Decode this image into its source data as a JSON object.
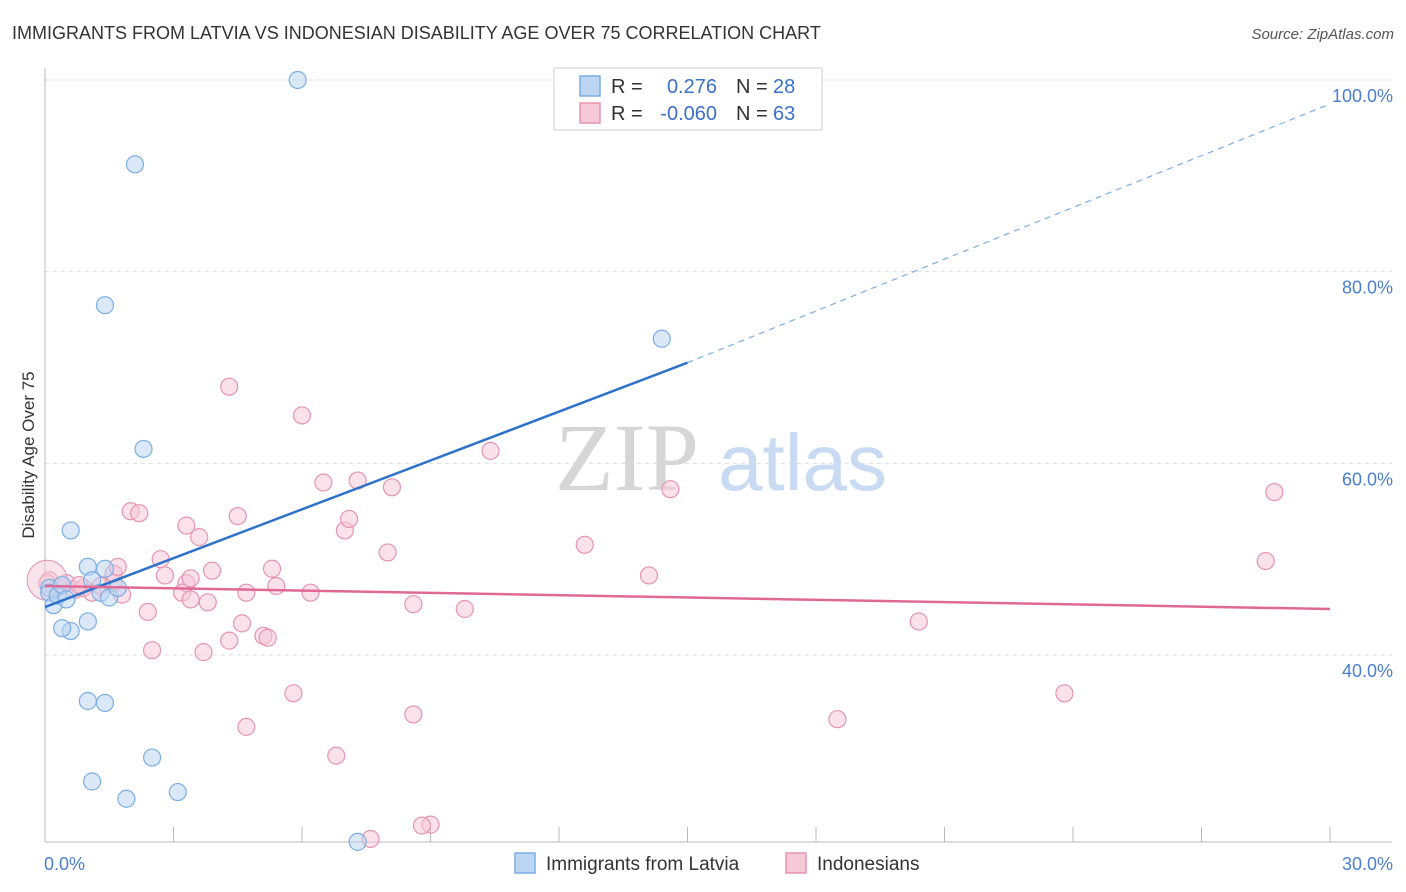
{
  "chart_data": {
    "type": "scatter",
    "title": "IMMIGRANTS FROM LATVIA VS INDONESIAN DISABILITY AGE OVER 75 CORRELATION CHART",
    "source": "Source: ZipAtlas.com",
    "ylabel": "Disability Age Over 75",
    "xlabel": "",
    "xlim": [
      0,
      30
    ],
    "ylim": [
      20,
      102
    ],
    "x_tick_labels": [
      "0.0%",
      "30.0%"
    ],
    "y_ticks": [
      40,
      60,
      80,
      100
    ],
    "y_tick_labels": [
      "40.0%",
      "60.0%",
      "80.0%",
      "100.0%"
    ],
    "watermark": {
      "zip": "ZIP",
      "atlas": "atlas"
    },
    "legend": {
      "r_label": "R =",
      "n_label": "N =",
      "entries": [
        {
          "r": "0.276",
          "n": "28"
        },
        {
          "r": "-0.060",
          "n": "63"
        }
      ]
    },
    "series": [
      {
        "name": "Immigrants from Latvia",
        "color": "#7aaee6",
        "fill": "#bcd5f3",
        "trend": {
          "x0": 0.0,
          "y0": 45.0,
          "x1": 15.0,
          "y1": 70.5,
          "dash_to_x": 30.0,
          "dash_to_y": 97.5,
          "color": "#2f72c9"
        },
        "points": [
          [
            0.1,
            47.0
          ],
          [
            0.1,
            46.5
          ],
          [
            0.2,
            45.2
          ],
          [
            0.3,
            46.2
          ],
          [
            0.4,
            47.3
          ],
          [
            0.5,
            45.8
          ],
          [
            0.6,
            53.0
          ],
          [
            0.6,
            42.5
          ],
          [
            0.4,
            42.8
          ],
          [
            1.0,
            49.2
          ],
          [
            1.1,
            47.8
          ],
          [
            1.0,
            43.5
          ],
          [
            1.3,
            46.5
          ],
          [
            1.4,
            49.0
          ],
          [
            1.5,
            46.0
          ],
          [
            1.7,
            47.0
          ],
          [
            1.4,
            76.5
          ],
          [
            2.1,
            91.2
          ],
          [
            2.3,
            61.5
          ],
          [
            1.0,
            35.2
          ],
          [
            1.4,
            35.0
          ],
          [
            2.5,
            29.3
          ],
          [
            1.1,
            26.8
          ],
          [
            1.9,
            25.0
          ],
          [
            3.1,
            25.7
          ],
          [
            5.9,
            100.0
          ],
          [
            14.4,
            73.0
          ],
          [
            7.3,
            20.5
          ]
        ]
      },
      {
        "name": "Indonesians",
        "color": "#e694b0",
        "fill": "#f6c9d8",
        "trend": {
          "x0": 0.0,
          "y0": 47.2,
          "x1": 30.0,
          "y1": 44.8,
          "color": "#e06994"
        },
        "points": [
          [
            0.1,
            47.8
          ],
          [
            0.3,
            47.0
          ],
          [
            0.5,
            47.5
          ],
          [
            0.7,
            46.8
          ],
          [
            0.9,
            47.0
          ],
          [
            1.1,
            46.5
          ],
          [
            1.3,
            47.2
          ],
          [
            1.6,
            47.5
          ],
          [
            1.8,
            46.3
          ],
          [
            1.6,
            48.5
          ],
          [
            1.7,
            49.2
          ],
          [
            2.0,
            55.0
          ],
          [
            2.2,
            54.8
          ],
          [
            2.7,
            50.0
          ],
          [
            2.8,
            48.3
          ],
          [
            3.3,
            53.5
          ],
          [
            3.6,
            52.3
          ],
          [
            3.3,
            47.5
          ],
          [
            3.2,
            46.5
          ],
          [
            3.4,
            48.0
          ],
          [
            3.4,
            45.8
          ],
          [
            3.9,
            48.8
          ],
          [
            3.8,
            45.5
          ],
          [
            4.3,
            68.0
          ],
          [
            4.5,
            54.5
          ],
          [
            4.6,
            43.3
          ],
          [
            4.3,
            41.5
          ],
          [
            3.7,
            40.3
          ],
          [
            2.5,
            40.5
          ],
          [
            2.4,
            44.5
          ],
          [
            4.7,
            46.5
          ],
          [
            5.3,
            49.0
          ],
          [
            5.4,
            47.2
          ],
          [
            5.1,
            42.0
          ],
          [
            5.2,
            41.8
          ],
          [
            5.8,
            36.0
          ],
          [
            4.7,
            32.5
          ],
          [
            6.0,
            65.0
          ],
          [
            6.2,
            46.5
          ],
          [
            6.5,
            58.0
          ],
          [
            7.0,
            53.0
          ],
          [
            7.1,
            54.2
          ],
          [
            7.3,
            58.2
          ],
          [
            8.0,
            50.7
          ],
          [
            8.1,
            57.5
          ],
          [
            8.6,
            45.3
          ],
          [
            8.6,
            33.8
          ],
          [
            9.0,
            22.3
          ],
          [
            8.8,
            22.2
          ],
          [
            9.8,
            44.8
          ],
          [
            7.6,
            20.8
          ],
          [
            6.8,
            29.5
          ],
          [
            10.4,
            61.3
          ],
          [
            12.6,
            51.5
          ],
          [
            14.1,
            48.3
          ],
          [
            14.6,
            57.3
          ],
          [
            18.5,
            33.3
          ],
          [
            20.4,
            43.5
          ],
          [
            23.8,
            36.0
          ],
          [
            28.5,
            49.8
          ],
          [
            28.7,
            57.0
          ],
          [
            0.05,
            47.5
          ],
          [
            0.8,
            47.3
          ]
        ]
      }
    ]
  }
}
